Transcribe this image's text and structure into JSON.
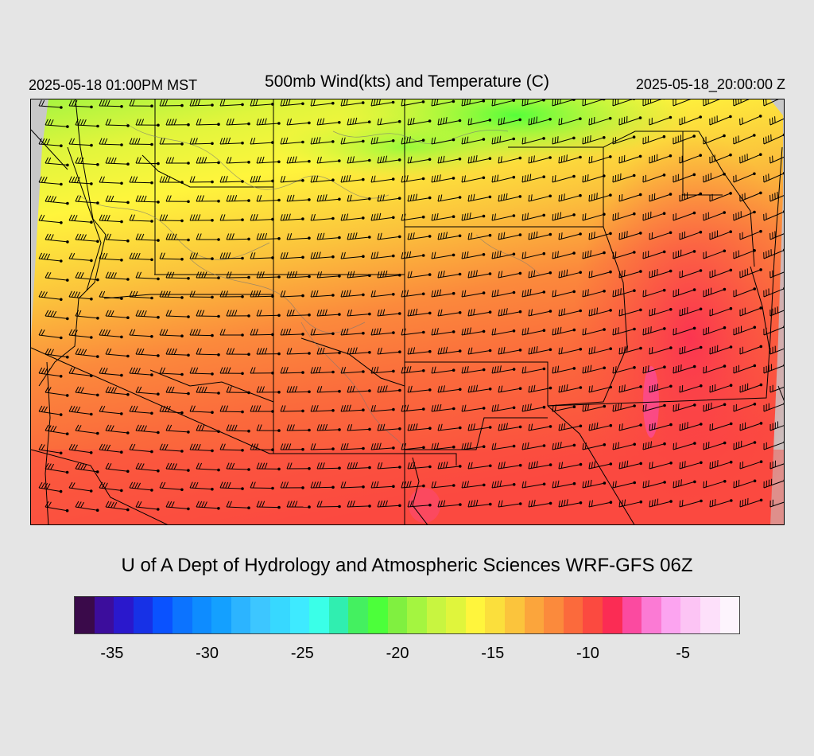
{
  "header": {
    "local_time": "2025-05-18 01:00PM MST",
    "title": "500mb Wind(kts) and Temperature (C)",
    "valid_time": "2025-05-18_20:00:00 Z"
  },
  "credit": "U of A Dept of Hydrology and Atmospheric Sciences WRF-GFS 06Z",
  "colorbar": {
    "colors": [
      "#3a0a4a",
      "#3c0d9c",
      "#2a18cc",
      "#1731e6",
      "#0a52ff",
      "#0c73ff",
      "#0e8cff",
      "#14a0ff",
      "#2cb4ff",
      "#3dc6ff",
      "#37d8ff",
      "#3eeaff",
      "#3affe8",
      "#30eeb0",
      "#44f060",
      "#4cff3a",
      "#80f040",
      "#a4f540",
      "#c8f540",
      "#e0f53c",
      "#fff53c",
      "#fbdf3c",
      "#fbc43c",
      "#fba53c",
      "#fb8a3c",
      "#fb6a3c",
      "#fb4a40",
      "#fb2c54",
      "#fb4aa0",
      "#fb7ad4",
      "#fca4f0",
      "#fcc4f4",
      "#fde0fa",
      "#fdf4fd"
    ],
    "tick_labels": [
      "-35",
      "-30",
      "-25",
      "-20",
      "-15",
      "-10",
      "-5"
    ],
    "tick_values": [
      -35,
      -30,
      -25,
      -20,
      -15,
      -10,
      -5
    ],
    "range": [
      -37,
      -2
    ]
  },
  "map": {
    "field": "500mb temperature (C) with wind barbs (kts)",
    "temperature_colors": {
      "cold_north": "#4cff3a",
      "north": "#a4f540",
      "mid_north": "#fff53c",
      "mid": "#fba53c",
      "mid_south": "#fb6a3c",
      "south": "#fb4a40",
      "warm_pockets": "#fb4aa0"
    }
  }
}
